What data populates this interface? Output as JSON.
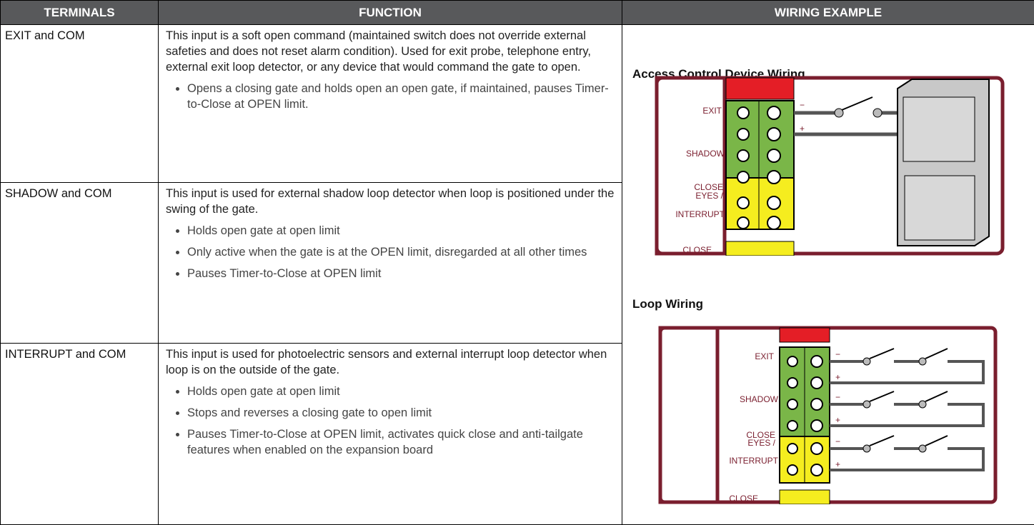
{
  "table": {
    "headers": [
      "TERMINALS",
      "FUNCTION",
      "WIRING EXAMPLE"
    ],
    "rows": [
      {
        "terminal": "EXIT and COM",
        "description": "This input is a soft open command (maintained switch does not override external safeties and does not reset alarm condition). Used for exit probe, telephone entry, external exit loop detector, or any device that would command the gate to open.",
        "bullets": [
          "Opens a closing gate and holds open an open gate, if maintained, pauses Timer-to-Close at OPEN limit."
        ]
      },
      {
        "terminal": "SHADOW and COM",
        "description": "This input is used for external shadow loop detector when loop is positioned under the swing of the gate.",
        "bullets": [
          "Holds open gate at open limit",
          "Only active when the gate is at the OPEN limit, disregarded at all other times",
          "Pauses Timer-to-Close at OPEN limit"
        ]
      },
      {
        "terminal": "INTERRUPT and COM",
        "description": "This input is used for photoelectric sensors and external interrupt loop detector when loop is on the outside of the gate.",
        "bullets": [
          "Holds open gate at open limit",
          "Stops and reverses a closing gate to open limit",
          "Pauses Timer-to-Close at OPEN limit, activates quick close and anti-tailgate features when enabled on the expansion board"
        ]
      }
    ]
  },
  "wiring": {
    "diagrams": [
      {
        "title": "Access Control Device Wiring"
      },
      {
        "title": "Loop Wiring"
      }
    ],
    "labels": {
      "exit": "EXIT",
      "shadow": "SHADOW",
      "close_eyes": "CLOSE",
      "eyes": "EYES /",
      "interrupt": "INTERRUPT",
      "close": "CLOSE",
      "minus": "−",
      "plus": "+"
    }
  }
}
